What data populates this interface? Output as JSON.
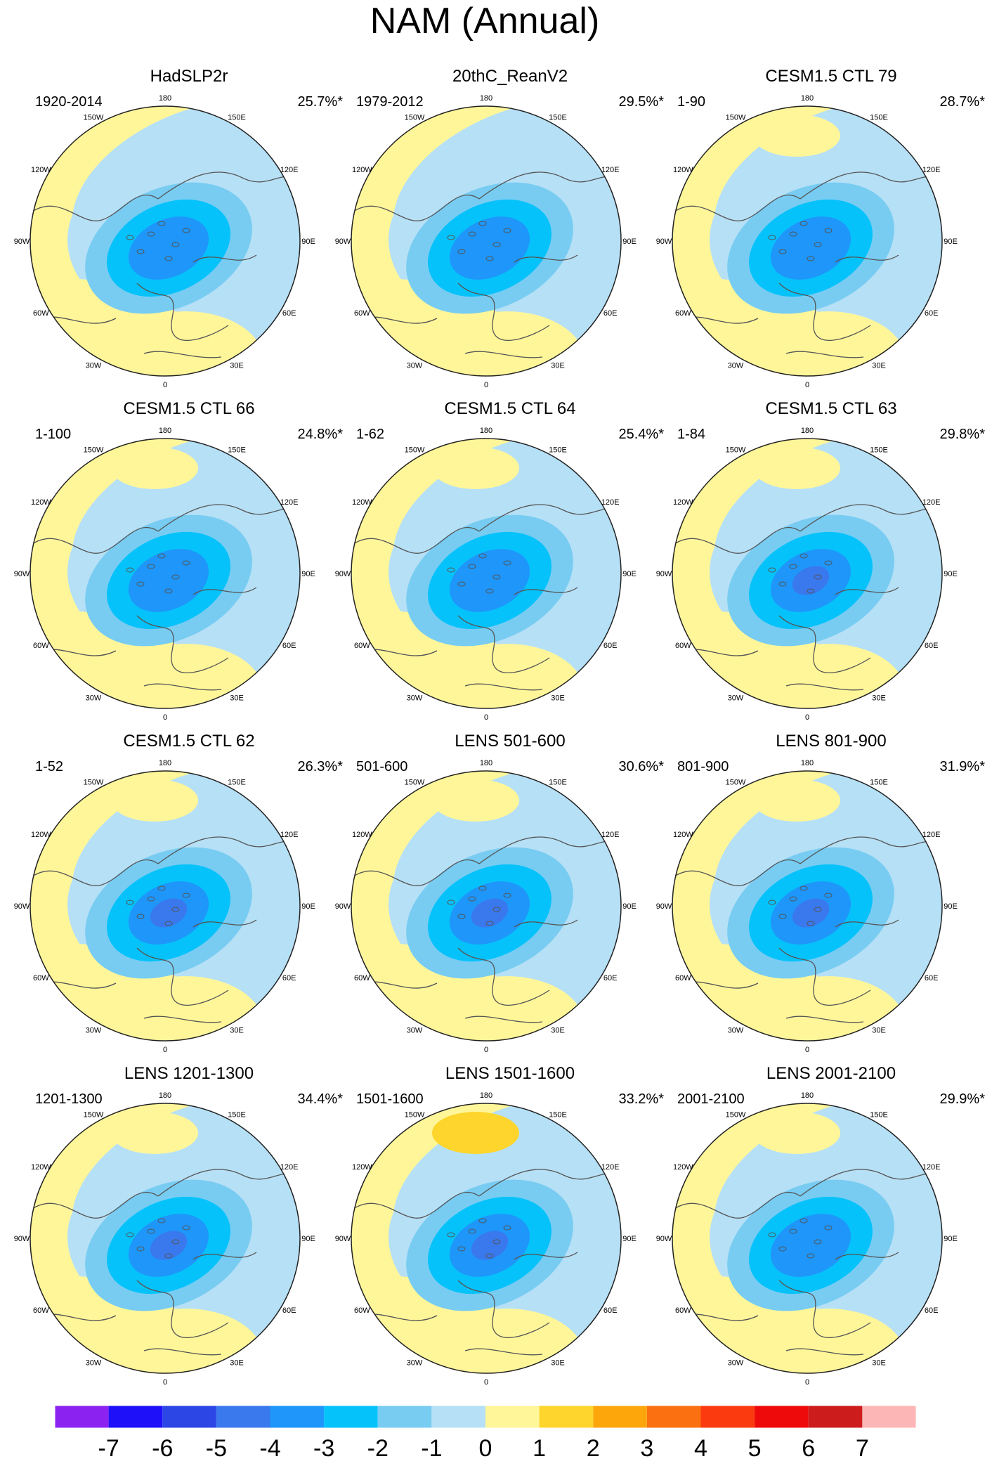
{
  "title": "NAM (Annual)",
  "chart_data": {
    "type": "heatmap",
    "projection": "north-polar-stereographic",
    "variable": "sea-level-pressure regression pattern (filled contours)",
    "longitude_labels": [
      "180",
      "150E",
      "120E",
      "90E",
      "60E",
      "30E",
      "0",
      "30W",
      "60W",
      "90W",
      "120W",
      "150W"
    ],
    "panels": [
      {
        "title": "HadSLP2r",
        "period": "1920-2014",
        "percent": "25.7%*",
        "center_min": -3,
        "positive_lobe_max": 0
      },
      {
        "title": "20thC_ReanV2",
        "period": "1979-2012",
        "percent": "29.5%*",
        "center_min": -3,
        "positive_lobe_max": 0
      },
      {
        "title": "CESM1.5 CTL 79",
        "period": "1-90",
        "percent": "28.7%*",
        "center_min": -3,
        "positive_lobe_max": 1
      },
      {
        "title": "CESM1.5 CTL 66",
        "period": "1-100",
        "percent": "24.8%*",
        "center_min": -3,
        "positive_lobe_max": 1
      },
      {
        "title": "CESM1.5 CTL 64",
        "period": "1-62",
        "percent": "25.4%*",
        "center_min": -3,
        "positive_lobe_max": 1
      },
      {
        "title": "CESM1.5 CTL 63",
        "period": "1-84",
        "percent": "29.8%*",
        "center_min": -4,
        "positive_lobe_max": 1
      },
      {
        "title": "CESM1.5 CTL 62",
        "period": "1-52",
        "percent": "26.3%*",
        "center_min": -4,
        "positive_lobe_max": 1
      },
      {
        "title": "LENS 501-600",
        "period": "501-600",
        "percent": "30.6%*",
        "center_min": -4,
        "positive_lobe_max": 1
      },
      {
        "title": "LENS 801-900",
        "period": "801-900",
        "percent": "31.9%*",
        "center_min": -4,
        "positive_lobe_max": 1
      },
      {
        "title": "LENS 1201-1300",
        "period": "1201-1300",
        "percent": "34.4%*",
        "center_min": -4,
        "positive_lobe_max": 1
      },
      {
        "title": "LENS 1501-1600",
        "period": "1501-1600",
        "percent": "33.2%*",
        "center_min": -4,
        "positive_lobe_max": 2
      },
      {
        "title": "LENS 2001-2100",
        "period": "2001-2100",
        "percent": "29.9%*",
        "center_min": -3,
        "positive_lobe_max": 1
      }
    ],
    "colorbar": {
      "labels": [
        "-7",
        "-6",
        "-5",
        "-4",
        "-3",
        "-2",
        "-1",
        "0",
        "1",
        "2",
        "3",
        "4",
        "5",
        "6",
        "7"
      ],
      "colors": [
        "#8b22f0",
        "#1e10f8",
        "#2c46e6",
        "#3a78ee",
        "#1e96fa",
        "#06c2fa",
        "#78ccf2",
        "#b6e0f6",
        "#fff69a",
        "#fdd52c",
        "#fda60c",
        "#fb7010",
        "#fb3a10",
        "#ee0a0a",
        "#cd1c1c",
        "#fcb6b6"
      ]
    },
    "colors": {
      "positive": "#fff69a",
      "weak_negative": "#b6e0f6",
      "coastline": "#555555"
    }
  }
}
